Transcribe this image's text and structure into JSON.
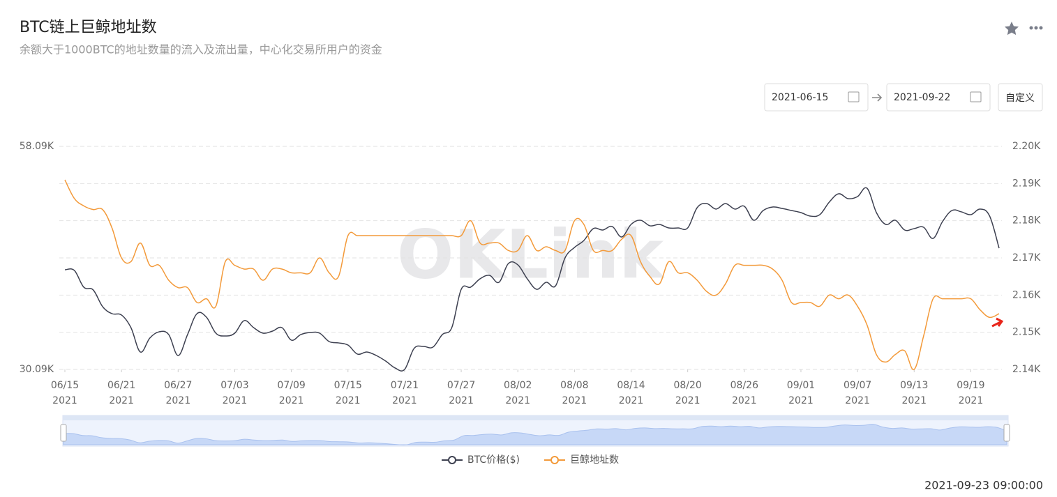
{
  "header": {
    "title": "BTC链上巨鲸地址数",
    "subtitle": "余额大于1000BTC的地址数量的流入及流出量，中心化交易所用户的资金"
  },
  "controls": {
    "start_date": "2021-06-15",
    "end_date": "2021-09-22",
    "custom_button": "自定义"
  },
  "watermark": "OKLink",
  "footer": {
    "timestamp": "2021-09-23 09:00:00"
  },
  "chart_data": {
    "type": "line",
    "x": [
      "2021-06-15",
      "2021-06-16",
      "2021-06-17",
      "2021-06-18",
      "2021-06-19",
      "2021-06-20",
      "2021-06-21",
      "2021-06-22",
      "2021-06-23",
      "2021-06-24",
      "2021-06-25",
      "2021-06-26",
      "2021-06-27",
      "2021-06-28",
      "2021-06-29",
      "2021-06-30",
      "2021-07-01",
      "2021-07-02",
      "2021-07-03",
      "2021-07-04",
      "2021-07-05",
      "2021-07-06",
      "2021-07-07",
      "2021-07-08",
      "2021-07-09",
      "2021-07-10",
      "2021-07-11",
      "2021-07-12",
      "2021-07-13",
      "2021-07-14",
      "2021-07-15",
      "2021-07-16",
      "2021-07-17",
      "2021-07-18",
      "2021-07-19",
      "2021-07-20",
      "2021-07-21",
      "2021-07-22",
      "2021-07-23",
      "2021-07-24",
      "2021-07-25",
      "2021-07-26",
      "2021-07-27",
      "2021-07-28",
      "2021-07-29",
      "2021-07-30",
      "2021-07-31",
      "2021-08-01",
      "2021-08-02",
      "2021-08-03",
      "2021-08-04",
      "2021-08-05",
      "2021-08-06",
      "2021-08-07",
      "2021-08-08",
      "2021-08-09",
      "2021-08-10",
      "2021-08-11",
      "2021-08-12",
      "2021-08-13",
      "2021-08-14",
      "2021-08-15",
      "2021-08-16",
      "2021-08-17",
      "2021-08-18",
      "2021-08-19",
      "2021-08-20",
      "2021-08-21",
      "2021-08-22",
      "2021-08-23",
      "2021-08-24",
      "2021-08-25",
      "2021-08-26",
      "2021-08-27",
      "2021-08-28",
      "2021-08-29",
      "2021-08-30",
      "2021-08-31",
      "2021-09-01",
      "2021-09-02",
      "2021-09-03",
      "2021-09-04",
      "2021-09-05",
      "2021-09-06",
      "2021-09-07",
      "2021-09-08",
      "2021-09-09",
      "2021-09-10",
      "2021-09-11",
      "2021-09-12",
      "2021-09-13",
      "2021-09-14",
      "2021-09-15",
      "2021-09-16",
      "2021-09-17",
      "2021-09-18",
      "2021-09-19",
      "2021-09-20",
      "2021-09-21",
      "2021-09-22"
    ],
    "xticks": [
      {
        "value": "2021-06-15",
        "label": [
          "06/15",
          "2021"
        ]
      },
      {
        "value": "2021-06-21",
        "label": [
          "06/21",
          "2021"
        ]
      },
      {
        "value": "2021-06-27",
        "label": [
          "06/27",
          "2021"
        ]
      },
      {
        "value": "2021-07-03",
        "label": [
          "07/03",
          "2021"
        ]
      },
      {
        "value": "2021-07-09",
        "label": [
          "07/09",
          "2021"
        ]
      },
      {
        "value": "2021-07-15",
        "label": [
          "07/15",
          "2021"
        ]
      },
      {
        "value": "2021-07-21",
        "label": [
          "07/21",
          "2021"
        ]
      },
      {
        "value": "2021-07-27",
        "label": [
          "07/27",
          "2021"
        ]
      },
      {
        "value": "2021-08-02",
        "label": [
          "08/02",
          "2021"
        ]
      },
      {
        "value": "2021-08-08",
        "label": [
          "08/08",
          "2021"
        ]
      },
      {
        "value": "2021-08-14",
        "label": [
          "08/14",
          "2021"
        ]
      },
      {
        "value": "2021-08-20",
        "label": [
          "08/20",
          "2021"
        ]
      },
      {
        "value": "2021-08-26",
        "label": [
          "08/26",
          "2021"
        ]
      },
      {
        "value": "2021-09-01",
        "label": [
          "09/01",
          "2021"
        ]
      },
      {
        "value": "2021-09-07",
        "label": [
          "09/07",
          "2021"
        ]
      },
      {
        "value": "2021-09-13",
        "label": [
          "09/13",
          "2021"
        ]
      },
      {
        "value": "2021-09-19",
        "label": [
          "09/19",
          "2021"
        ]
      }
    ],
    "ylim": [
      30090,
      58090
    ],
    "yticks": [
      {
        "value": 58090,
        "label": "58.09K"
      },
      {
        "value": 30090,
        "label": "30.09K"
      }
    ],
    "y2lim": [
      2140,
      2200
    ],
    "y2ticks": [
      {
        "value": 2200,
        "label": "2.20K"
      },
      {
        "value": 2190,
        "label": "2.19K"
      },
      {
        "value": 2180,
        "label": "2.18K"
      },
      {
        "value": 2170,
        "label": "2.17K"
      },
      {
        "value": 2160,
        "label": "2.16K"
      },
      {
        "value": 2150,
        "label": "2.15K"
      },
      {
        "value": 2140,
        "label": "2.14K"
      }
    ],
    "grid": true,
    "series": [
      {
        "name": "BTC价格($)",
        "color": "#3d4050",
        "values": [
          42600,
          42520,
          40420,
          40070,
          37970,
          37090,
          36920,
          35340,
          32280,
          34030,
          34820,
          34470,
          31840,
          34470,
          37090,
          36650,
          34640,
          34290,
          34640,
          36220,
          35340,
          34640,
          34900,
          35340,
          33770,
          34470,
          34730,
          34640,
          33590,
          33420,
          33150,
          32020,
          32280,
          31840,
          31140,
          30270,
          30090,
          32720,
          32980,
          32890,
          34470,
          35340,
          40150,
          40420,
          41470,
          41900,
          41030,
          43390,
          43220,
          41470,
          40150,
          41030,
          40590,
          44090,
          45400,
          46280,
          47770,
          47590,
          48030,
          46720,
          48290,
          48820,
          48120,
          48290,
          47850,
          47850,
          47850,
          50390,
          50920,
          50220,
          50920,
          50220,
          50570,
          48820,
          50040,
          50480,
          50300,
          50040,
          49780,
          49340,
          49520,
          51090,
          52140,
          51530,
          51790,
          52840,
          49780,
          48290,
          48820,
          47590,
          47770,
          47940,
          46540,
          48640,
          50040,
          49870,
          49520,
          50220,
          49340,
          45310
        ]
      },
      {
        "name": "巨鲸地址数",
        "color": "#f39a3a",
        "axis": "y2",
        "values": [
          2191,
          2186,
          2184,
          2183,
          2183,
          2178,
          2170,
          2169,
          2174,
          2168,
          2168,
          2164,
          2162,
          2162,
          2158,
          2159,
          2157,
          2169,
          2168,
          2167,
          2167,
          2164,
          2167,
          2167,
          2166,
          2166,
          2166,
          2170,
          2166,
          2165,
          2176,
          2176,
          2176,
          2176,
          2176,
          2176,
          2176,
          2176,
          2176,
          2176,
          2176,
          2176,
          2176,
          2180,
          2174,
          2174,
          2174,
          2172,
          2172,
          2176,
          2172,
          2173,
          2172,
          2172,
          2180,
          2179,
          2172,
          2172,
          2172,
          2175,
          2176,
          2169,
          2165,
          2163,
          2169,
          2166,
          2166,
          2164,
          2161,
          2160,
          2163,
          2168,
          2168,
          2168,
          2168,
          2167,
          2164,
          2158,
          2158,
          2158,
          2157,
          2160,
          2159,
          2160,
          2157,
          2152,
          2144,
          2142,
          2144,
          2145,
          2140,
          2149,
          2159,
          2159,
          2159,
          2159,
          2159,
          2156,
          2154,
          2155
        ]
      }
    ]
  }
}
